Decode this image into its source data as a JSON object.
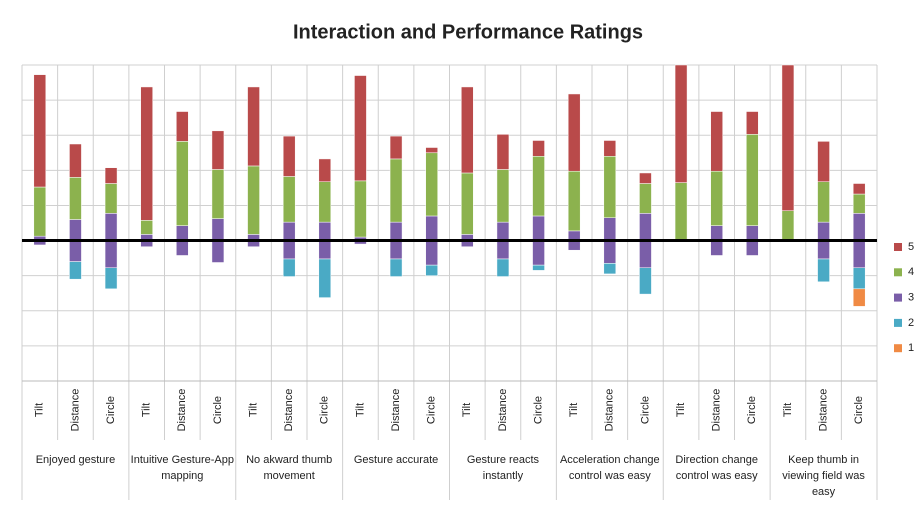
{
  "chart_data": {
    "type": "diverging_stacked_bar",
    "title": "Interaction and Performance Ratings",
    "categories": [
      "Tilt",
      "Distance",
      "Circle",
      "Tilt",
      "Distance",
      "Circle",
      "Tilt",
      "Distance",
      "Circle",
      "Tilt",
      "Distance",
      "Circle",
      "Tilt",
      "Distance",
      "Circle",
      "Tilt",
      "Distance",
      "Circle",
      "Tilt",
      "Distance",
      "Circle",
      "Tilt",
      "Distance",
      "Circle"
    ],
    "groups": [
      "Enjoyed gesture",
      "Intuitive Gesture-App mapping",
      "No akward thumb movement",
      "Gesture accurate",
      "Gesture reacts instantly",
      "Acceleration change control was easy",
      "Direction change control was easy",
      "Keep thumb in viewing field was easy"
    ],
    "series": [
      {
        "name": "5",
        "color": "#b94a4a",
        "values": [
          64,
          19,
          9,
          76,
          17,
          22,
          45,
          23,
          13,
          60,
          13,
          3,
          49,
          20,
          9,
          44,
          9,
          6,
          67,
          34,
          13,
          83,
          23,
          6
        ]
      },
      {
        "name": "4",
        "color": "#8cb24e",
        "values": [
          28,
          24,
          17,
          8,
          48,
          28,
          39,
          26,
          23,
          32,
          36,
          36,
          35,
          30,
          34,
          34,
          35,
          17,
          33,
          31,
          52,
          17,
          23,
          11
        ]
      },
      {
        "name": "3",
        "color": "#7a5ea8",
        "values": [
          5,
          24,
          31,
          7,
          17,
          25,
          7,
          21,
          21,
          4,
          21,
          28,
          7,
          21,
          28,
          11,
          26,
          31,
          0,
          17,
          17,
          0,
          21,
          31
        ]
      },
      {
        "name": "2",
        "color": "#4aaac5",
        "values": [
          0,
          10,
          12,
          0,
          0,
          0,
          0,
          10,
          22,
          0,
          10,
          6,
          0,
          10,
          3,
          0,
          6,
          15,
          0,
          0,
          0,
          0,
          13,
          12
        ]
      },
      {
        "name": "1",
        "color": "#f08a44",
        "values": [
          0,
          0,
          0,
          0,
          0,
          0,
          0,
          0,
          0,
          0,
          0,
          0,
          0,
          0,
          0,
          0,
          0,
          0,
          0,
          0,
          0,
          0,
          0,
          10
        ]
      }
    ],
    "ylim": [
      -80,
      100
    ],
    "yticks": [
      -80,
      -60,
      -40,
      -20,
      0,
      20,
      40,
      60,
      80,
      100
    ],
    "grid": true,
    "legend": "right"
  }
}
